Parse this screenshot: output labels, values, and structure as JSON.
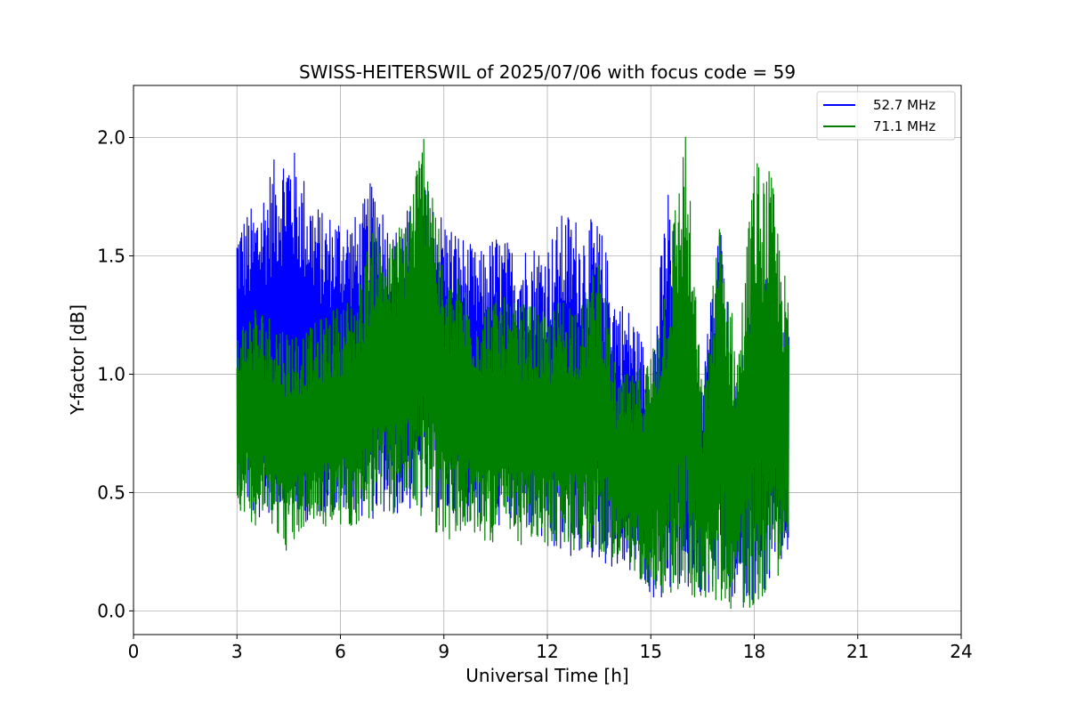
{
  "chart_data": {
    "type": "line",
    "title": "SWISS-HEITERSWIL of 2025/07/06 with focus code = 59",
    "xlabel": "Universal Time [h]",
    "ylabel": "Y-factor [dB]",
    "xlim": [
      0,
      24
    ],
    "ylim": [
      -0.1,
      2.22
    ],
    "xticks": [
      "0",
      "3",
      "6",
      "9",
      "12",
      "15",
      "18",
      "21",
      "24"
    ],
    "yticks": [
      "0.0",
      "0.5",
      "1.0",
      "1.5",
      "2.0"
    ],
    "grid": true,
    "legend_position": "top-right",
    "series": [
      {
        "name": "52.7 MHz",
        "color": "#0000ff",
        "envelope": {
          "x": [
            3.0,
            3.5,
            4.0,
            4.5,
            5.0,
            5.5,
            6.0,
            6.5,
            7.0,
            7.5,
            8.0,
            8.5,
            9.0,
            9.5,
            10.0,
            10.5,
            11.0,
            11.5,
            12.0,
            12.5,
            13.0,
            13.5,
            14.0,
            14.5,
            15.0,
            15.5,
            16.0,
            16.5,
            17.0,
            17.5,
            18.0,
            18.5,
            19.0
          ],
          "upper": [
            1.66,
            1.72,
            1.89,
            2.01,
            1.83,
            1.68,
            1.7,
            1.67,
            1.86,
            1.6,
            1.72,
            1.8,
            1.68,
            1.6,
            1.51,
            1.6,
            1.55,
            1.56,
            1.57,
            1.7,
            1.66,
            1.65,
            1.35,
            1.26,
            1.05,
            1.83,
            1.09,
            1.02,
            1.68,
            0.98,
            1.43,
            1.39,
            1.23
          ],
          "lower": [
            0.54,
            0.36,
            0.4,
            0.38,
            0.37,
            0.4,
            0.4,
            0.4,
            0.38,
            0.39,
            0.42,
            0.4,
            0.38,
            0.37,
            0.38,
            0.35,
            0.35,
            0.33,
            0.24,
            0.21,
            0.22,
            0.2,
            0.17,
            0.15,
            0.05,
            0.02,
            0.1,
            0.05,
            0.1,
            0.02,
            0.05,
            0.1,
            0.24
          ]
        }
      },
      {
        "name": "71.1 MHz",
        "color": "#008000",
        "envelope": {
          "x": [
            3.0,
            3.5,
            4.0,
            4.5,
            5.0,
            5.5,
            6.0,
            6.5,
            7.0,
            7.5,
            8.0,
            8.5,
            9.0,
            9.5,
            10.0,
            10.5,
            11.0,
            11.5,
            12.0,
            12.5,
            13.0,
            13.5,
            14.0,
            14.5,
            15.0,
            15.5,
            16.0,
            16.5,
            17.0,
            17.5,
            18.0,
            18.5,
            19.0
          ],
          "upper": [
            1.2,
            1.3,
            1.25,
            1.2,
            1.18,
            1.25,
            1.3,
            1.35,
            1.7,
            1.55,
            1.77,
            2.12,
            1.4,
            1.42,
            1.3,
            1.35,
            1.3,
            1.3,
            1.25,
            1.35,
            1.3,
            1.55,
            1.0,
            1.0,
            1.1,
            1.5,
            2.08,
            0.9,
            1.7,
            1.1,
            1.93,
            1.85,
            1.3
          ],
          "lower": [
            0.44,
            0.36,
            0.37,
            0.23,
            0.36,
            0.35,
            0.34,
            0.36,
            0.38,
            0.4,
            0.45,
            0.36,
            0.3,
            0.3,
            0.3,
            0.28,
            0.28,
            0.27,
            0.26,
            0.26,
            0.25,
            0.25,
            0.2,
            0.15,
            0.1,
            0.05,
            0.05,
            0.05,
            0.02,
            0.0,
            0.0,
            0.1,
            0.23
          ]
        }
      }
    ]
  }
}
